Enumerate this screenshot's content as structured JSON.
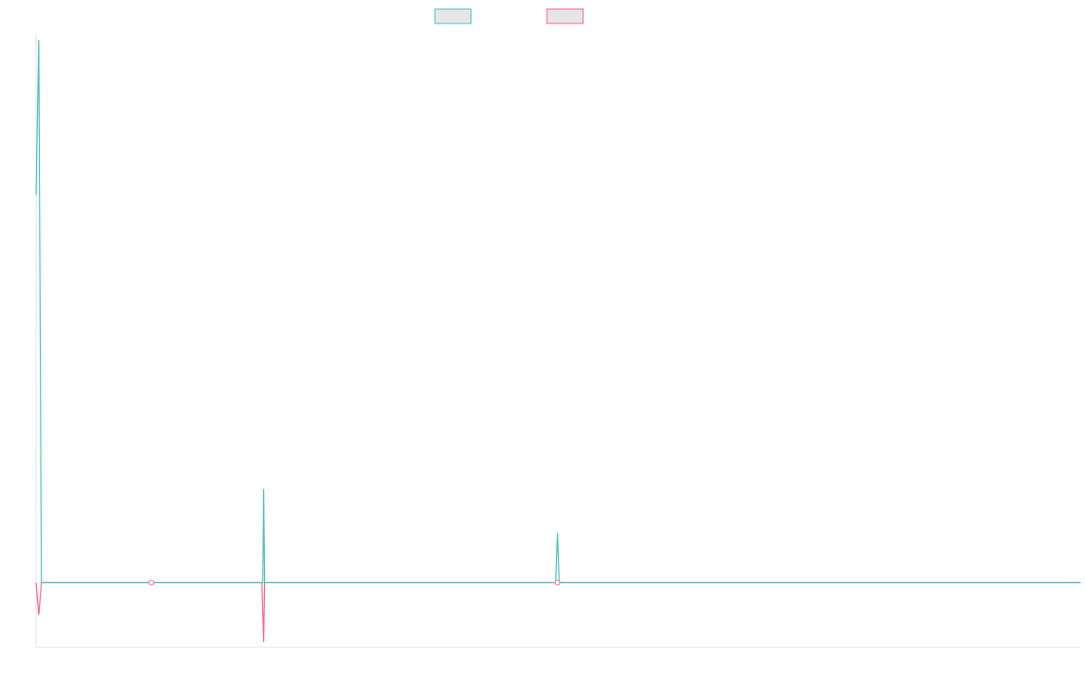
{
  "chart_data": {
    "type": "line",
    "title": "",
    "xlabel": "",
    "ylabel": "",
    "ylim": [
      -10,
      85
    ],
    "legend_position": "top-center",
    "grid": false,
    "x_count": 60,
    "series": [
      {
        "name": "",
        "color": "#36a2eb",
        "line_color": "#4bc0c0",
        "values": [
          {
            "x": 0,
            "y": 60
          },
          {
            "x": 0.15,
            "y": 84
          },
          {
            "x": 0.3,
            "y": 0
          },
          {
            "x": 6.6,
            "y": 0
          },
          {
            "x": 13,
            "y": 0
          },
          {
            "x": 13.05,
            "y": 14.5
          },
          {
            "x": 13.1,
            "y": 0
          },
          {
            "x": 29.8,
            "y": 0
          },
          {
            "x": 29.9,
            "y": 7.7
          },
          {
            "x": 30,
            "y": 0
          },
          {
            "x": 59.9,
            "y": 0
          }
        ]
      },
      {
        "name": "",
        "color": "#ff6384",
        "line_color": "#ff6384",
        "values": [
          {
            "x": 0,
            "y": 0
          },
          {
            "x": 0.15,
            "y": -5
          },
          {
            "x": 0.3,
            "y": 0
          },
          {
            "x": 6.6,
            "y": 0
          },
          {
            "x": 12.95,
            "y": 0
          },
          {
            "x": 13.05,
            "y": -9.2
          },
          {
            "x": 13.1,
            "y": 0
          },
          {
            "x": 29.9,
            "y": 0
          },
          {
            "x": 59.9,
            "y": 0
          }
        ]
      }
    ],
    "markers": [
      {
        "series": 1,
        "x": 6.6,
        "y": 0
      },
      {
        "series": 1,
        "x": 29.9,
        "y": 0
      }
    ]
  }
}
